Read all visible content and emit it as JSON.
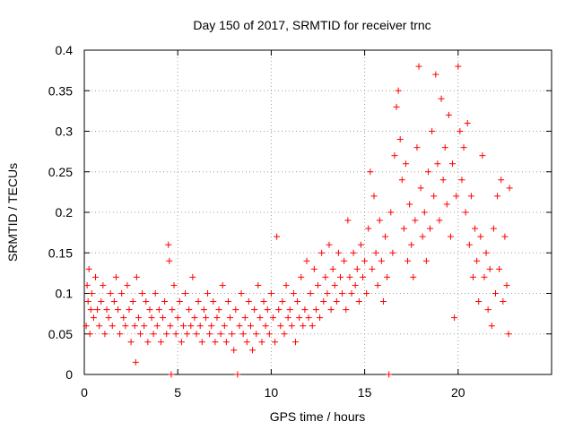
{
  "chart_data": {
    "type": "scatter",
    "title": "Day 150 of 2017, SRMTID for receiver trnc",
    "xlabel": "GPS time / hours",
    "ylabel": "SRMTID / TECUs",
    "xlim": [
      0,
      25
    ],
    "ylim": [
      0,
      0.4
    ],
    "xticks": [
      0,
      5,
      10,
      15,
      20
    ],
    "xtick_labels": [
      "0",
      "5",
      "10",
      "15",
      "20"
    ],
    "yticks": [
      0,
      0.05,
      0.1,
      0.15,
      0.2,
      0.25,
      0.3,
      0.35,
      0.4
    ],
    "ytick_labels": [
      "0",
      "0.05",
      "0.1",
      "0.15",
      "0.2",
      "0.25",
      "0.3",
      "0.35",
      "0.4"
    ],
    "grid": true,
    "marker": "plus",
    "color": "#ff0000",
    "series": [
      {
        "name": "SRMTID",
        "points": [
          [
            0.1,
            0.06
          ],
          [
            0.15,
            0.11
          ],
          [
            0.2,
            0.09
          ],
          [
            0.25,
            0.13
          ],
          [
            0.3,
            0.05
          ],
          [
            0.35,
            0.08
          ],
          [
            0.4,
            0.1
          ],
          [
            0.5,
            0.07
          ],
          [
            0.6,
            0.12
          ],
          [
            0.7,
            0.08
          ],
          [
            0.8,
            0.06
          ],
          [
            0.9,
            0.09
          ],
          [
            1.0,
            0.11
          ],
          [
            1.1,
            0.05
          ],
          [
            1.2,
            0.08
          ],
          [
            1.3,
            0.07
          ],
          [
            1.4,
            0.1
          ],
          [
            1.5,
            0.06
          ],
          [
            1.6,
            0.09
          ],
          [
            1.7,
            0.12
          ],
          [
            1.8,
            0.08
          ],
          [
            1.9,
            0.05
          ],
          [
            2.0,
            0.1
          ],
          [
            2.1,
            0.07
          ],
          [
            2.2,
            0.06
          ],
          [
            2.3,
            0.11
          ],
          [
            2.4,
            0.08
          ],
          [
            2.5,
            0.04
          ],
          [
            2.6,
            0.09
          ],
          [
            2.7,
            0.06
          ],
          [
            2.75,
            0.015
          ],
          [
            2.8,
            0.12
          ],
          [
            2.9,
            0.07
          ],
          [
            3.0,
            0.05
          ],
          [
            3.1,
            0.1
          ],
          [
            3.2,
            0.06
          ],
          [
            3.3,
            0.09
          ],
          [
            3.4,
            0.04
          ],
          [
            3.5,
            0.08
          ],
          [
            3.6,
            0.07
          ],
          [
            3.7,
            0.05
          ],
          [
            3.8,
            0.1
          ],
          [
            3.9,
            0.06
          ],
          [
            4.0,
            0.08
          ],
          [
            4.1,
            0.04
          ],
          [
            4.2,
            0.07
          ],
          [
            4.3,
            0.09
          ],
          [
            4.4,
            0.05
          ],
          [
            4.5,
            0.16
          ],
          [
            4.55,
            0.14
          ],
          [
            4.6,
            0.06
          ],
          [
            4.65,
            0.0
          ],
          [
            4.7,
            0.08
          ],
          [
            4.8,
            0.11
          ],
          [
            4.9,
            0.05
          ],
          [
            5.0,
            0.07
          ],
          [
            5.1,
            0.09
          ],
          [
            5.2,
            0.04
          ],
          [
            5.3,
            0.06
          ],
          [
            5.4,
            0.1
          ],
          [
            5.5,
            0.05
          ],
          [
            5.6,
            0.08
          ],
          [
            5.7,
            0.06
          ],
          [
            5.8,
            0.12
          ],
          [
            5.9,
            0.07
          ],
          [
            6.0,
            0.05
          ],
          [
            6.1,
            0.09
          ],
          [
            6.2,
            0.06
          ],
          [
            6.3,
            0.04
          ],
          [
            6.4,
            0.08
          ],
          [
            6.5,
            0.07
          ],
          [
            6.6,
            0.1
          ],
          [
            6.7,
            0.05
          ],
          [
            6.8,
            0.06
          ],
          [
            6.9,
            0.09
          ],
          [
            7.0,
            0.04
          ],
          [
            7.1,
            0.07
          ],
          [
            7.2,
            0.08
          ],
          [
            7.3,
            0.05
          ],
          [
            7.4,
            0.11
          ],
          [
            7.5,
            0.06
          ],
          [
            7.6,
            0.04
          ],
          [
            7.7,
            0.09
          ],
          [
            7.8,
            0.07
          ],
          [
            7.9,
            0.05
          ],
          [
            8.0,
            0.03
          ],
          [
            8.1,
            0.08
          ],
          [
            8.2,
            0.0
          ],
          [
            8.3,
            0.06
          ],
          [
            8.4,
            0.1
          ],
          [
            8.5,
            0.05
          ],
          [
            8.6,
            0.07
          ],
          [
            8.7,
            0.04
          ],
          [
            8.8,
            0.09
          ],
          [
            8.9,
            0.06
          ],
          [
            9.0,
            0.03
          ],
          [
            9.1,
            0.08
          ],
          [
            9.2,
            0.05
          ],
          [
            9.3,
            0.11
          ],
          [
            9.4,
            0.07
          ],
          [
            9.5,
            0.04
          ],
          [
            9.6,
            0.09
          ],
          [
            9.7,
            0.06
          ],
          [
            9.8,
            0.08
          ],
          [
            9.9,
            0.05
          ],
          [
            10.0,
            0.1
          ],
          [
            10.1,
            0.07
          ],
          [
            10.2,
            0.04
          ],
          [
            10.3,
            0.17
          ],
          [
            10.4,
            0.08
          ],
          [
            10.5,
            0.06
          ],
          [
            10.6,
            0.09
          ],
          [
            10.7,
            0.05
          ],
          [
            10.8,
            0.11
          ],
          [
            10.9,
            0.07
          ],
          [
            11.0,
            0.08
          ],
          [
            11.1,
            0.06
          ],
          [
            11.2,
            0.1
          ],
          [
            11.3,
            0.04
          ],
          [
            11.4,
            0.09
          ],
          [
            11.5,
            0.07
          ],
          [
            11.6,
            0.12
          ],
          [
            11.7,
            0.06
          ],
          [
            11.8,
            0.08
          ],
          [
            11.9,
            0.14
          ],
          [
            12.0,
            0.07
          ],
          [
            12.1,
            0.1
          ],
          [
            12.2,
            0.06
          ],
          [
            12.3,
            0.13
          ],
          [
            12.4,
            0.08
          ],
          [
            12.5,
            0.11
          ],
          [
            12.6,
            0.07
          ],
          [
            12.7,
            0.15
          ],
          [
            12.8,
            0.09
          ],
          [
            12.9,
            0.12
          ],
          [
            13.0,
            0.1
          ],
          [
            13.1,
            0.16
          ],
          [
            13.2,
            0.08
          ],
          [
            13.3,
            0.13
          ],
          [
            13.4,
            0.11
          ],
          [
            13.5,
            0.09
          ],
          [
            13.6,
            0.15
          ],
          [
            13.7,
            0.12
          ],
          [
            13.8,
            0.1
          ],
          [
            13.9,
            0.14
          ],
          [
            14.0,
            0.08
          ],
          [
            14.1,
            0.19
          ],
          [
            14.2,
            0.12
          ],
          [
            14.3,
            0.1
          ],
          [
            14.4,
            0.15
          ],
          [
            14.5,
            0.11
          ],
          [
            14.6,
            0.13
          ],
          [
            14.7,
            0.09
          ],
          [
            14.8,
            0.16
          ],
          [
            14.9,
            0.12
          ],
          [
            15.0,
            0.14
          ],
          [
            15.1,
            0.1
          ],
          [
            15.2,
            0.18
          ],
          [
            15.3,
            0.25
          ],
          [
            15.4,
            0.13
          ],
          [
            15.5,
            0.22
          ],
          [
            15.6,
            0.15
          ],
          [
            15.7,
            0.11
          ],
          [
            15.8,
            0.19
          ],
          [
            15.9,
            0.14
          ],
          [
            16.0,
            0.09
          ],
          [
            16.1,
            0.17
          ],
          [
            16.2,
            0.12
          ],
          [
            16.3,
            0.0
          ],
          [
            16.4,
            0.2
          ],
          [
            16.5,
            0.15
          ],
          [
            16.6,
            0.27
          ],
          [
            16.7,
            0.33
          ],
          [
            16.8,
            0.35
          ],
          [
            16.9,
            0.29
          ],
          [
            17.0,
            0.24
          ],
          [
            17.1,
            0.18
          ],
          [
            17.2,
            0.26
          ],
          [
            17.3,
            0.14
          ],
          [
            17.4,
            0.21
          ],
          [
            17.5,
            0.16
          ],
          [
            17.6,
            0.12
          ],
          [
            17.7,
            0.19
          ],
          [
            17.8,
            0.28
          ],
          [
            17.9,
            0.38
          ],
          [
            18.0,
            0.23
          ],
          [
            18.1,
            0.17
          ],
          [
            18.2,
            0.2
          ],
          [
            18.3,
            0.14
          ],
          [
            18.4,
            0.25
          ],
          [
            18.5,
            0.18
          ],
          [
            18.6,
            0.3
          ],
          [
            18.7,
            0.22
          ],
          [
            18.8,
            0.37
          ],
          [
            18.9,
            0.26
          ],
          [
            19.0,
            0.19
          ],
          [
            19.1,
            0.34
          ],
          [
            19.2,
            0.24
          ],
          [
            19.3,
            0.28
          ],
          [
            19.4,
            0.21
          ],
          [
            19.5,
            0.32
          ],
          [
            19.6,
            0.17
          ],
          [
            19.7,
            0.26
          ],
          [
            19.8,
            0.07
          ],
          [
            19.9,
            0.22
          ],
          [
            20.0,
            0.38
          ],
          [
            20.1,
            0.3
          ],
          [
            20.2,
            0.24
          ],
          [
            20.3,
            0.28
          ],
          [
            20.4,
            0.2
          ],
          [
            20.5,
            0.31
          ],
          [
            20.6,
            0.16
          ],
          [
            20.7,
            0.22
          ],
          [
            20.8,
            0.12
          ],
          [
            20.9,
            0.18
          ],
          [
            21.0,
            0.14
          ],
          [
            21.1,
            0.09
          ],
          [
            21.2,
            0.17
          ],
          [
            21.3,
            0.27
          ],
          [
            21.4,
            0.12
          ],
          [
            21.5,
            0.15
          ],
          [
            21.6,
            0.08
          ],
          [
            21.7,
            0.13
          ],
          [
            21.8,
            0.06
          ],
          [
            21.9,
            0.18
          ],
          [
            22.0,
            0.1
          ],
          [
            22.1,
            0.22
          ],
          [
            22.2,
            0.13
          ],
          [
            22.3,
            0.24
          ],
          [
            22.4,
            0.09
          ],
          [
            22.5,
            0.17
          ],
          [
            22.6,
            0.11
          ],
          [
            22.7,
            0.05
          ],
          [
            22.75,
            0.23
          ]
        ]
      }
    ]
  }
}
